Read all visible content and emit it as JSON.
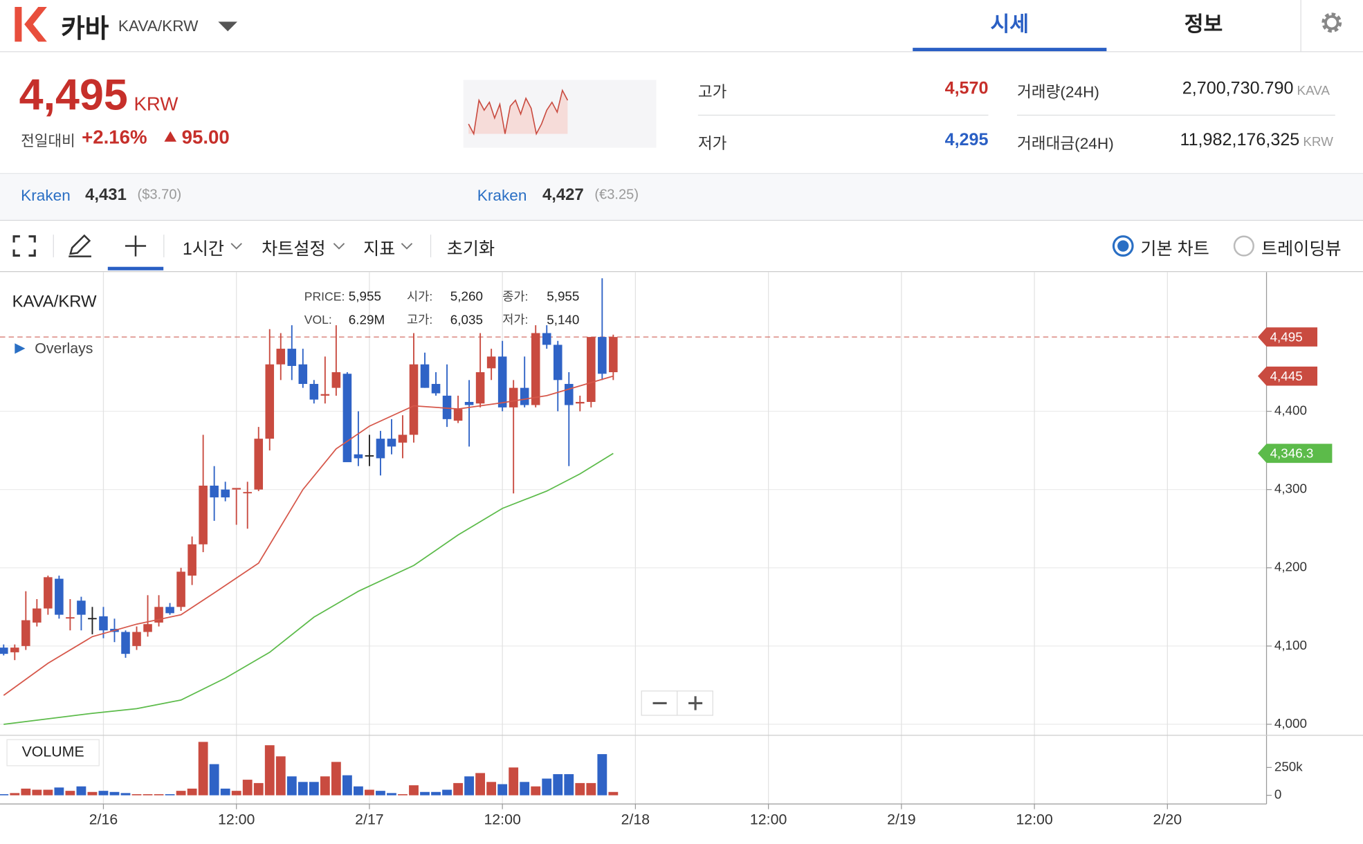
{
  "header": {
    "name": "카바",
    "pair": "KAVA/KRW",
    "tabs": [
      "시세",
      "정보"
    ]
  },
  "ticker": {
    "price": "4,495",
    "unit": "KRW",
    "change_label": "전일대비",
    "change_pct": "+2.16%",
    "change_abs": "95.00",
    "sparkline": {
      "values": [
        4350,
        4300,
        4470,
        4420,
        4460,
        4380,
        4450,
        4300,
        4440,
        4470,
        4400,
        4480,
        4430,
        4300,
        4350,
        4420,
        4460,
        4410,
        4520,
        4470
      ]
    },
    "stats": [
      {
        "label": "고가",
        "value": "4,570"
      },
      {
        "label": "저가",
        "value": "4,295"
      },
      {
        "label": "거래량(24H)",
        "value": "2,700,730.790",
        "unit": "KAVA"
      },
      {
        "label": "거래대금(24H)",
        "value": "11,982,176,325",
        "unit": "KRW"
      }
    ]
  },
  "exchanges": [
    {
      "name": "Kraken",
      "price": "4,431",
      "foreign": "($3.70)"
    },
    {
      "name": "Kraken",
      "price": "4,427",
      "foreign": "(€3.25)"
    }
  ],
  "toolbar": {
    "items": [
      "1시간",
      "차트설정",
      "지표",
      "초기화"
    ],
    "modes": [
      "기본 차트",
      "트레이딩뷰"
    ]
  },
  "chart_data": {
    "type": "candlestick",
    "title": "KAVA/KRW",
    "overlays_label": "Overlays",
    "volume_label": "VOLUME",
    "info": [
      {
        "label": "PRICE:",
        "value": "5,955"
      },
      {
        "label": "시가:",
        "value": "5,260"
      },
      {
        "label": "종가:",
        "value": "5,955"
      },
      {
        "label": "VOL:",
        "value": "6.29M"
      },
      {
        "label": "고가:",
        "value": "6,035"
      },
      {
        "label": "저가:",
        "value": "5,140"
      }
    ],
    "up_color": "#c94b40",
    "down_color": "#2f63c6",
    "x": [
      -9,
      -8,
      -7,
      -6,
      -5,
      -4,
      -3,
      -2,
      -1,
      0,
      1,
      2,
      3,
      4,
      5,
      6,
      7,
      8,
      9,
      10,
      11,
      12,
      13,
      14,
      15,
      16,
      17,
      18,
      19,
      20,
      21,
      22,
      23,
      24,
      25,
      26,
      27,
      28,
      29,
      30,
      31,
      32,
      33,
      34,
      35,
      36,
      37,
      38,
      39,
      40,
      41,
      42,
      43,
      44,
      45,
      46
    ],
    "open": [
      4098,
      4092,
      4100,
      4130,
      4148,
      4186,
      4135,
      4158,
      4135,
      4138,
      4122,
      4118,
      4100,
      4118,
      4130,
      4150,
      4150,
      4190,
      4230,
      4305,
      4300,
      4300,
      4295,
      4300,
      4365,
      4460,
      4480,
      4460,
      4435,
      4420,
      4430,
      4448,
      4345,
      4343,
      4365,
      4365,
      4360,
      4370,
      4460,
      4435,
      4420,
      4388,
      4412,
      4410,
      4455,
      4470,
      4405,
      4430,
      4408,
      4500,
      4485,
      4435,
      4410,
      4412,
      4495,
      4450
    ],
    "high": [
      4102,
      4102,
      4170,
      4160,
      4190,
      4190,
      4160,
      4163,
      4150,
      4150,
      4135,
      4120,
      4125,
      4165,
      4165,
      4155,
      4200,
      4240,
      4370,
      4330,
      4310,
      4300,
      4310,
      4380,
      4505,
      4500,
      4510,
      4480,
      4440,
      4470,
      4510,
      4450,
      4400,
      4370,
      4375,
      4390,
      4395,
      4500,
      4475,
      4450,
      4460,
      4420,
      4440,
      4500,
      4480,
      4490,
      4440,
      4470,
      4510,
      4510,
      4490,
      4450,
      4420,
      4495,
      4570,
      4498
    ],
    "low": [
      4088,
      4082,
      4095,
      4125,
      4140,
      4135,
      4120,
      4120,
      4115,
      4110,
      4105,
      4085,
      4095,
      4112,
      4125,
      4140,
      4145,
      4178,
      4220,
      4260,
      4285,
      4255,
      4250,
      4298,
      4350,
      4440,
      4440,
      4430,
      4410,
      4410,
      4420,
      4340,
      4330,
      4330,
      4318,
      4345,
      4340,
      4360,
      4430,
      4420,
      4380,
      4385,
      4355,
      4405,
      4440,
      4400,
      4295,
      4405,
      4405,
      4480,
      4400,
      4330,
      4400,
      4405,
      4440,
      4440
    ],
    "close": [
      4090,
      4098,
      4133,
      4148,
      4188,
      4140,
      4136,
      4140,
      4135,
      4120,
      4118,
      4090,
      4118,
      4128,
      4150,
      4142,
      4195,
      4230,
      4305,
      4290,
      4290,
      4302,
      4296,
      4365,
      4460,
      4480,
      4458,
      4435,
      4415,
      4422,
      4450,
      4335,
      4340,
      4343,
      4340,
      4355,
      4370,
      4460,
      4430,
      4423,
      4390,
      4403,
      4408,
      4450,
      4470,
      4405,
      4430,
      4408,
      4500,
      4485,
      4440,
      4408,
      4412,
      4495,
      4448,
      4495
    ],
    "volume": [
      10000,
      20000,
      60000,
      50000,
      50000,
      70000,
      40000,
      80000,
      30000,
      40000,
      30000,
      20000,
      10000,
      10000,
      10000,
      10000,
      40000,
      60000,
      480000,
      280000,
      60000,
      40000,
      140000,
      110000,
      450000,
      350000,
      170000,
      120000,
      120000,
      170000,
      300000,
      180000,
      80000,
      50000,
      40000,
      20000,
      10000,
      90000,
      30000,
      30000,
      50000,
      110000,
      170000,
      200000,
      120000,
      100000,
      250000,
      120000,
      80000,
      150000,
      190000,
      190000,
      110000,
      110000,
      370000,
      30000
    ],
    "ma_lines": [
      {
        "color": "#d6574a",
        "x": [
          -9,
          -5,
          -1,
          3,
          7,
          10,
          14,
          18,
          21,
          24,
          28,
          32,
          36,
          40,
          46
        ],
        "values": [
          4037,
          4078,
          4112,
          4128,
          4140,
          4168,
          4206,
          4300,
          4352,
          4381,
          4407,
          4403,
          4411,
          4420,
          4445
        ]
      },
      {
        "color": "#5cbb4a",
        "x": [
          -9,
          -1,
          3,
          7,
          11,
          15,
          19,
          23,
          28,
          32,
          36,
          40,
          43,
          46
        ],
        "values": [
          4000,
          4014,
          4020,
          4031,
          4059,
          4092,
          4137,
          4170,
          4203,
          4242,
          4276,
          4298,
          4320,
          4346.3
        ]
      }
    ],
    "price_tags": [
      {
        "value": 4495,
        "label": "4,495",
        "color": "#c94b40",
        "dashed": true
      },
      {
        "value": 4445,
        "label": "4,445",
        "color": "#c94b40",
        "dashed": false
      },
      {
        "value": 4346.3,
        "label": "4,346.3",
        "color": "#5cbb4a",
        "dashed": false
      }
    ],
    "xlim": [
      -9.33,
      104.94
    ],
    "xticks": [
      {
        "value": 0,
        "label": "2/16"
      },
      {
        "value": 12,
        "label": "12:00"
      },
      {
        "value": 24,
        "label": "2/17"
      },
      {
        "value": 36,
        "label": "12:00"
      },
      {
        "value": 48,
        "label": "2/18"
      },
      {
        "value": 60,
        "label": "12:00"
      },
      {
        "value": 72,
        "label": "2/19"
      },
      {
        "value": 84,
        "label": "12:00"
      },
      {
        "value": 96,
        "label": "2/20"
      }
    ],
    "ylim": [
      3987,
      4578
    ],
    "yticks": [
      {
        "value": 4000,
        "label": "4,000"
      },
      {
        "value": 4100,
        "label": "4,100"
      },
      {
        "value": 4200,
        "label": "4,200"
      },
      {
        "value": 4300,
        "label": "4,300"
      },
      {
        "value": 4400,
        "label": "4,400"
      }
    ],
    "volume_ylim": [
      0,
      531250
    ],
    "volume_yticks": [
      0,
      {
        "value": 250000,
        "label": "250k"
      }
    ],
    "grid": true
  }
}
